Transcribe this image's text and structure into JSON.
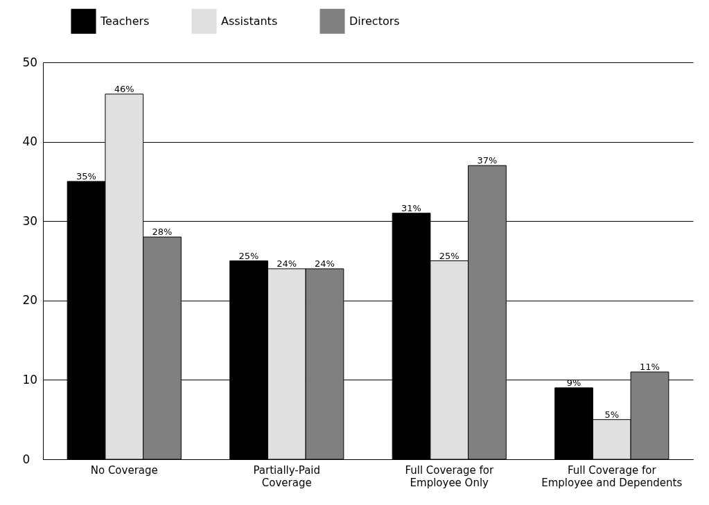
{
  "chart_data": {
    "type": "bar",
    "categories": [
      "No Coverage",
      "Partially-Paid Coverage",
      "Full Coverage for Employee Only",
      "Full Coverage for Employee and Dependents"
    ],
    "series": [
      {
        "name": "Teachers",
        "color": "#000000",
        "values": [
          35,
          25,
          31,
          9
        ],
        "value_labels": [
          "35%",
          "25%",
          "31%",
          "9%"
        ]
      },
      {
        "name": "Assistants",
        "color": "#e0e0e0",
        "values": [
          46,
          24,
          25,
          5
        ],
        "value_labels": [
          "46%",
          "24%",
          "25%",
          "5%"
        ]
      },
      {
        "name": "Directors",
        "color": "#808080",
        "values": [
          28,
          24,
          37,
          11
        ],
        "value_labels": [
          "28%",
          "24%",
          "37%",
          "11%"
        ]
      }
    ],
    "ylim": [
      0,
      50
    ],
    "yticks": [
      0,
      10,
      20,
      30,
      40,
      50
    ],
    "grid": "y",
    "legend": "top left"
  }
}
